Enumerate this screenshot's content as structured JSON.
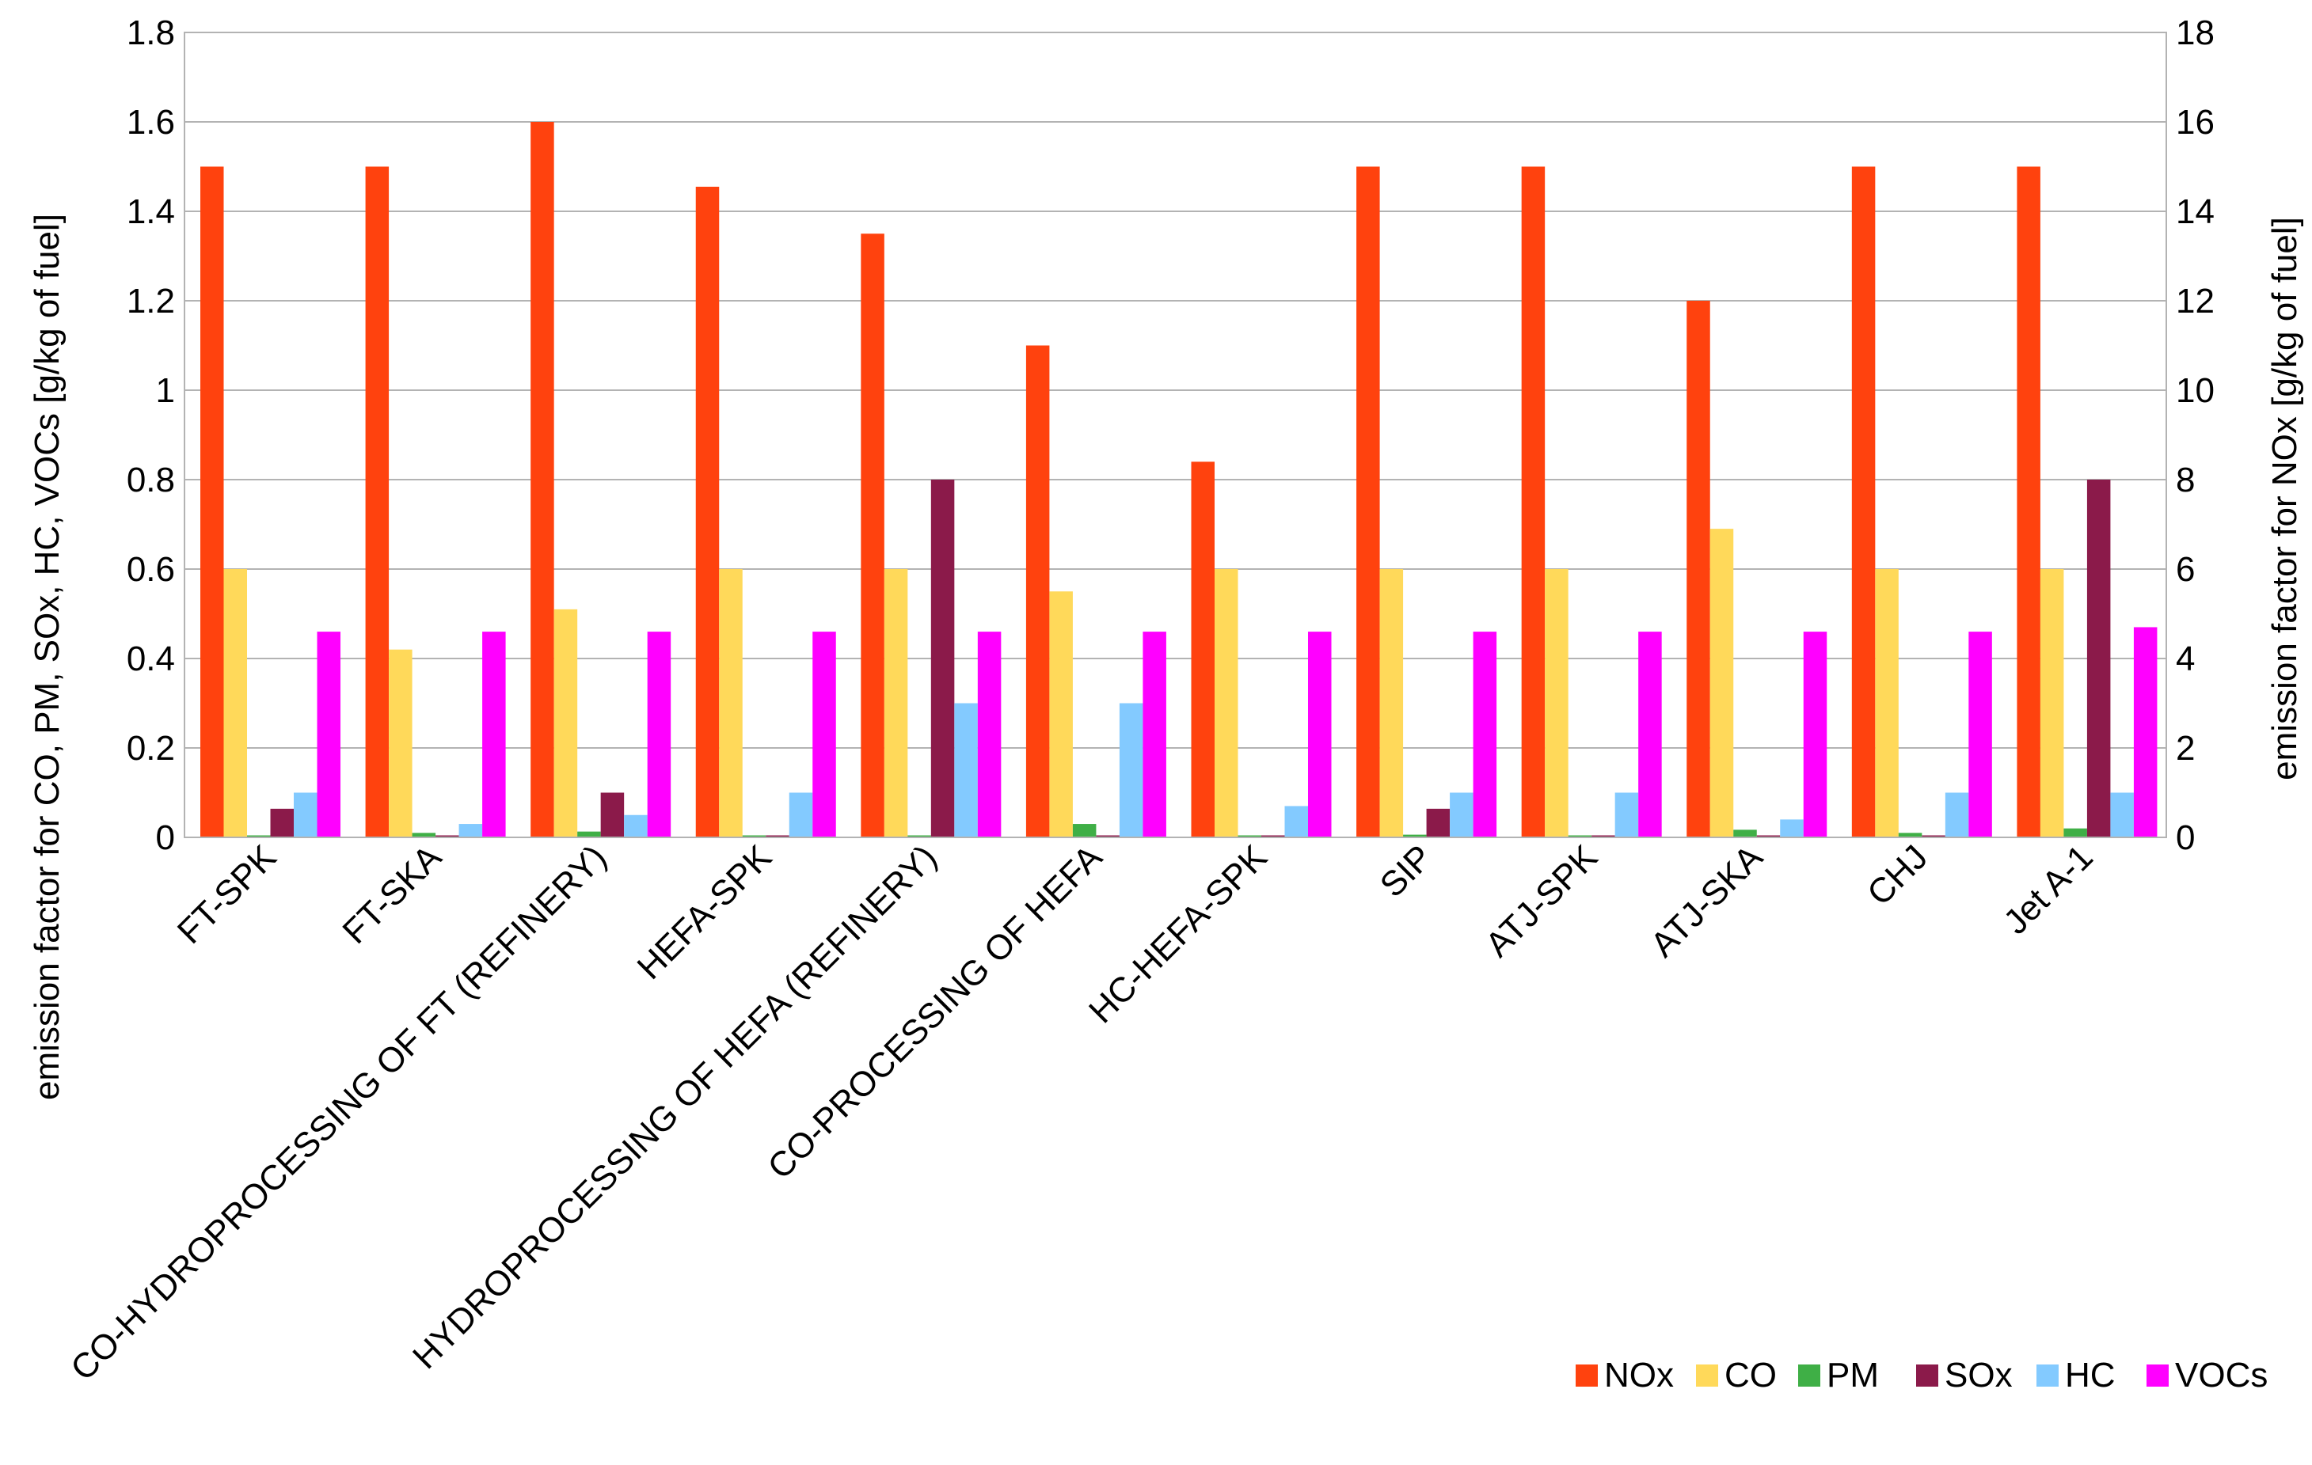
{
  "chart_data": {
    "type": "bar",
    "title": "",
    "categories": [
      "FT-SPK",
      "FT-SKA",
      "CO-HYDROPROCESSING OF FT (REFINERY)",
      "HEFA-SPK",
      "HYDROPROCESSING OF HEFA (REFINERY)",
      "CO-PROCESSING OF HEFA",
      "HC-HEFA-SPK",
      "SIP",
      "ATJ-SPK",
      "ATJ-SKA",
      "CHJ",
      "Jet A-1"
    ],
    "series": [
      {
        "name": "NOx",
        "axis": "right",
        "color": "#ff420e",
        "values": [
          15,
          15,
          16,
          14.55,
          13.5,
          11,
          8.4,
          15,
          15,
          12,
          15,
          15
        ]
      },
      {
        "name": "CO",
        "axis": "left",
        "color": "#ffd95a",
        "values": [
          0.6,
          0.42,
          0.51,
          0.6,
          0.6,
          0.55,
          0.6,
          0.6,
          0.6,
          0.69,
          0.6,
          0.6
        ]
      },
      {
        "name": "PM",
        "axis": "left",
        "color": "#3faf46",
        "values": [
          0.0,
          0.01,
          0.013,
          0.003,
          0.0,
          0.03,
          0.003,
          0.006,
          0.0,
          0.017,
          0.01,
          0.02
        ]
      },
      {
        "name": "SOx",
        "axis": "left",
        "color": "#8b1a4a",
        "values": [
          0.064,
          0.002,
          0.1,
          0.002,
          0.8,
          0.0,
          0.002,
          0.064,
          0.002,
          0.002,
          0.002,
          0.8
        ]
      },
      {
        "name": "HC",
        "axis": "left",
        "color": "#83caff",
        "values": [
          0.1,
          0.03,
          0.05,
          0.1,
          0.3,
          0.3,
          0.07,
          0.1,
          0.1,
          0.04,
          0.1,
          0.1
        ]
      },
      {
        "name": "VOCs",
        "axis": "left",
        "color": "#ff00ff",
        "values": [
          0.46,
          0.46,
          0.46,
          0.46,
          0.46,
          0.46,
          0.46,
          0.46,
          0.46,
          0.46,
          0.46,
          0.47
        ]
      }
    ],
    "y_left": {
      "label": "emission factor for CO, PM, SOx, HC, VOCs [g/kg of fuel]",
      "lim": [
        0,
        1.8
      ],
      "ticks": [
        "0",
        "0.2",
        "0.4",
        "0.6",
        "0.8",
        "1",
        "1.2",
        "1.4",
        "1.6",
        "1.8"
      ]
    },
    "y_right": {
      "label": "emission factor for NOx [g/kg of fuel]",
      "lim": [
        0,
        18
      ],
      "ticks": [
        "0",
        "2",
        "4",
        "6",
        "8",
        "10",
        "12",
        "14",
        "16",
        "18"
      ]
    },
    "grid": true,
    "legend": {
      "position": "bottom-right"
    }
  }
}
